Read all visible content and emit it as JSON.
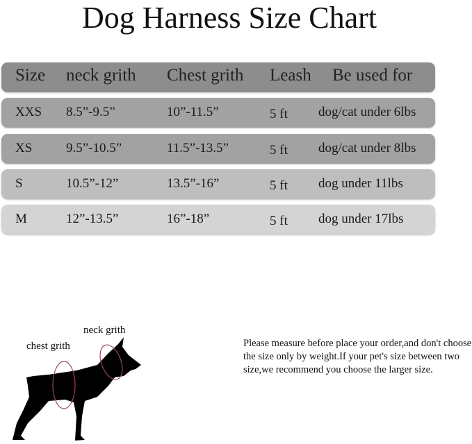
{
  "title": "Dog Harness Size Chart",
  "table": {
    "headers": [
      "Size",
      "neck grith",
      "Chest grith",
      "Leash",
      "Be used for"
    ],
    "rows": [
      [
        "XXS",
        "8.5”-9.5”",
        "10”-11.5”",
        "5 ft",
        "dog/cat under 6lbs"
      ],
      [
        "XS",
        "9.5”-10.5”",
        "11.5”-13.5”",
        "5 ft",
        "dog/cat under 8lbs"
      ],
      [
        "S",
        "10.5”-12”",
        "13.5”-16”",
        "5 ft",
        "dog under 11lbs"
      ],
      [
        "M",
        "12”-13.5”",
        "16”-18”",
        "5 ft",
        "dog under 17lbs"
      ]
    ],
    "colors": {
      "header": "#8d8d8d",
      "rows": [
        "#a2a2a2",
        "#a2a2a2",
        "#bebebe",
        "#d4d4d4"
      ]
    }
  },
  "diagram": {
    "neck_label": "neck grith",
    "chest_label": "chest grith",
    "ring_color": "#9a4a55"
  },
  "note": "Please measure before place your order,and don't choose the size only by weight.If your pet's size between two size,we recommend you choose the larger size."
}
